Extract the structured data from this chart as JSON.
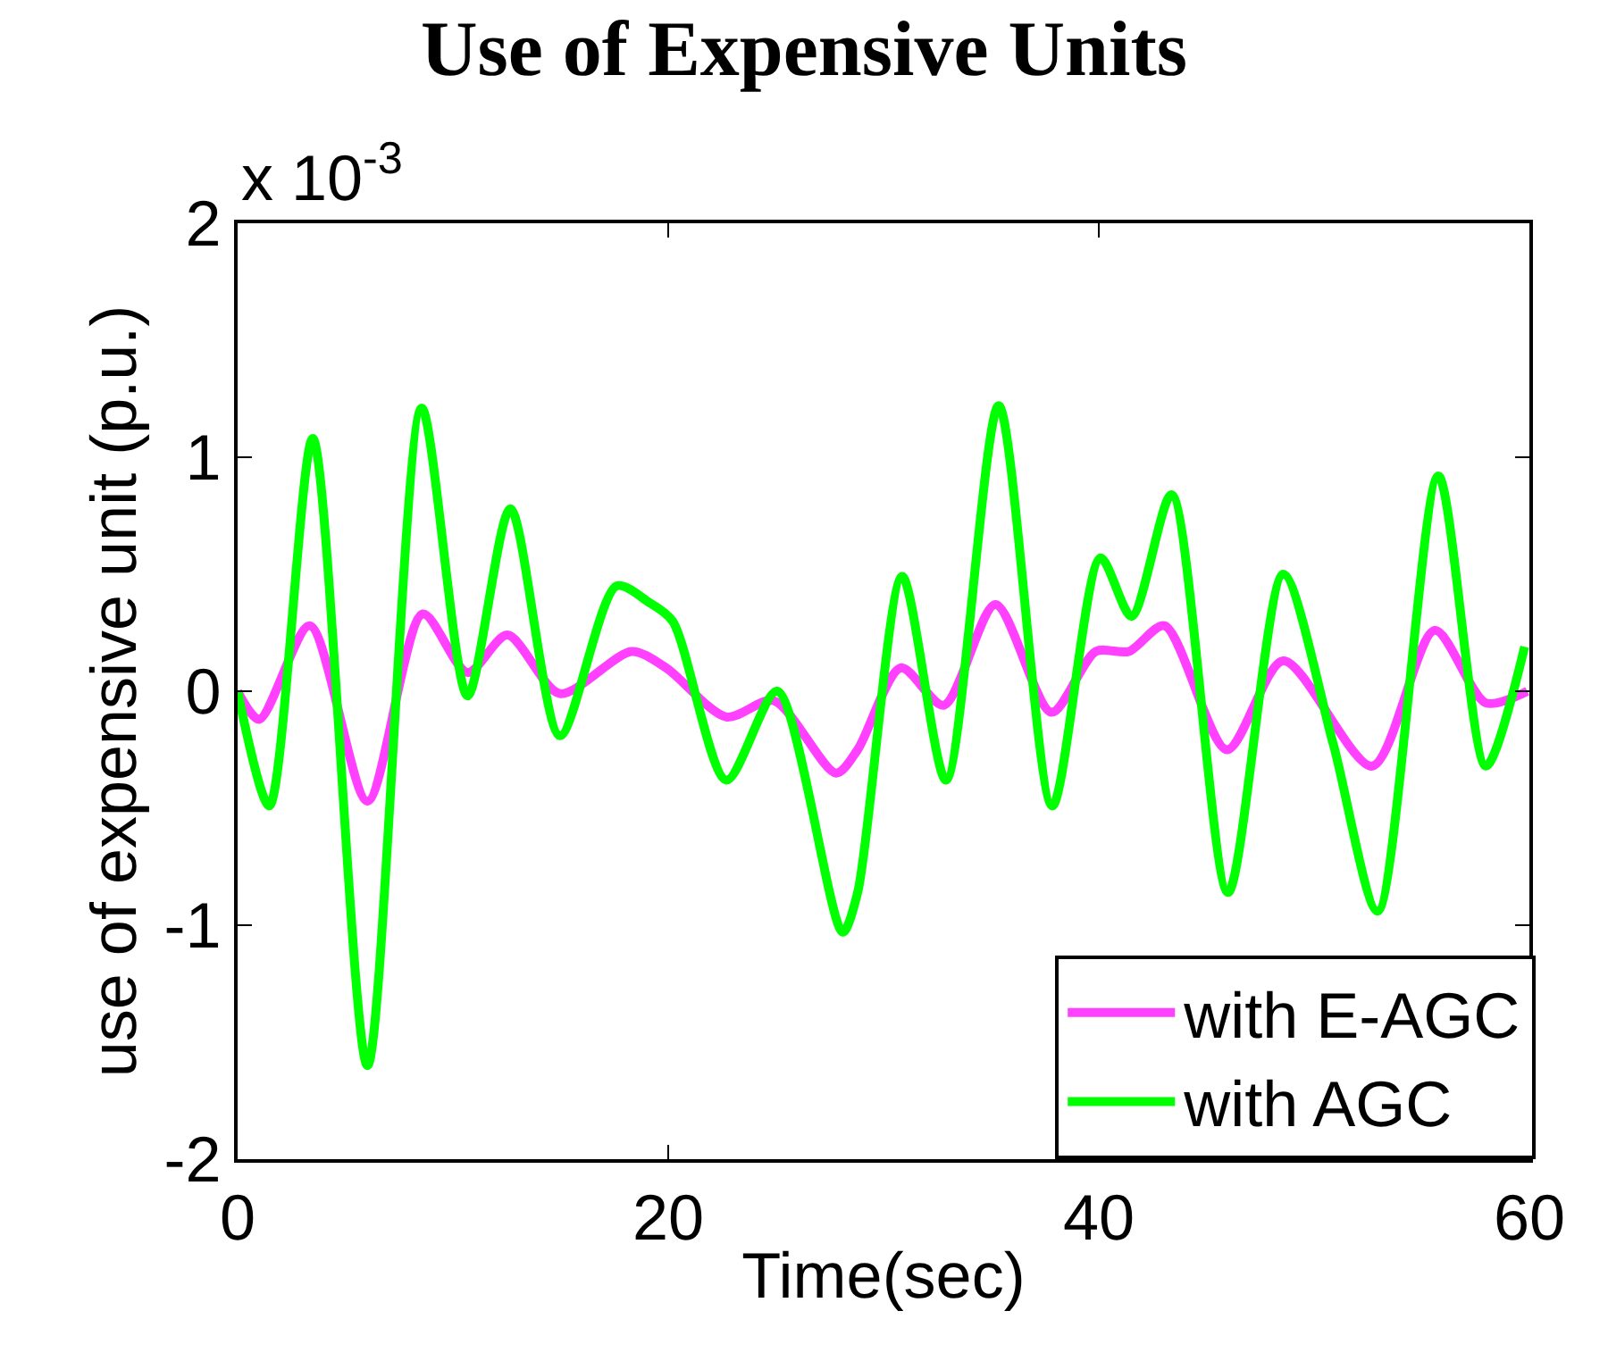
{
  "chart_data": {
    "type": "line",
    "title": "Use of Expensive Units",
    "xlabel": "Time(sec)",
    "ylabel": "use of expensive unit (p.u.)",
    "annotations": [
      "x 10$^{-3}$"
    ],
    "xlim": [
      0,
      60
    ],
    "xticks": [
      0,
      20,
      40,
      60
    ],
    "ylim": [
      -2,
      2
    ],
    "yticks": [
      -2,
      -1,
      0,
      1,
      2
    ],
    "grid": false,
    "legend": "bottom right",
    "marker": "none",
    "line_style": "solid",
    "series": [
      {
        "name": "with E-AGC",
        "color": "#ff40ff",
        "x": [
          0,
          1.0,
          3.35,
          6.03,
          8.6,
          10.68,
          12.53,
          14.97,
          18.3,
          19.9,
          22.7,
          24.9,
          27.8,
          28.8,
          30.8,
          32.8,
          35.2,
          37.8,
          39.86,
          41.4,
          43.05,
          45.95,
          48.57,
          52.7,
          55.6,
          57.98,
          59.9
        ],
        "values": [
          0,
          -0.12,
          0.28,
          -0.47,
          0.33,
          0.08,
          0.24,
          -0.01,
          0.17,
          0.1,
          -0.11,
          -0.04,
          -0.35,
          -0.25,
          0.1,
          -0.06,
          0.37,
          -0.09,
          0.17,
          0.17,
          0.28,
          -0.25,
          0.13,
          -0.32,
          0.26,
          -0.05,
          0.0
        ]
      },
      {
        "name": "with AGC",
        "color": "#00ff00",
        "x": [
          0,
          1.47,
          3.49,
          6.03,
          8.55,
          10.68,
          12.67,
          14.97,
          17.6,
          19.1,
          20.2,
          22.7,
          25.06,
          28.1,
          28.8,
          30.87,
          32.9,
          35.35,
          37.84,
          40.08,
          41.52,
          43.38,
          46.0,
          48.57,
          50.9,
          52.95,
          55.77,
          57.98,
          59.78
        ],
        "values": [
          0,
          -0.49,
          1.08,
          -1.6,
          1.21,
          -0.02,
          0.78,
          -0.19,
          0.45,
          0.38,
          0.3,
          -0.38,
          0.0,
          -1.03,
          -0.86,
          0.49,
          -0.38,
          1.22,
          -0.49,
          0.57,
          0.32,
          0.84,
          -0.86,
          0.5,
          -0.23,
          -0.94,
          0.92,
          -0.32,
          0.19
        ]
      }
    ]
  }
}
